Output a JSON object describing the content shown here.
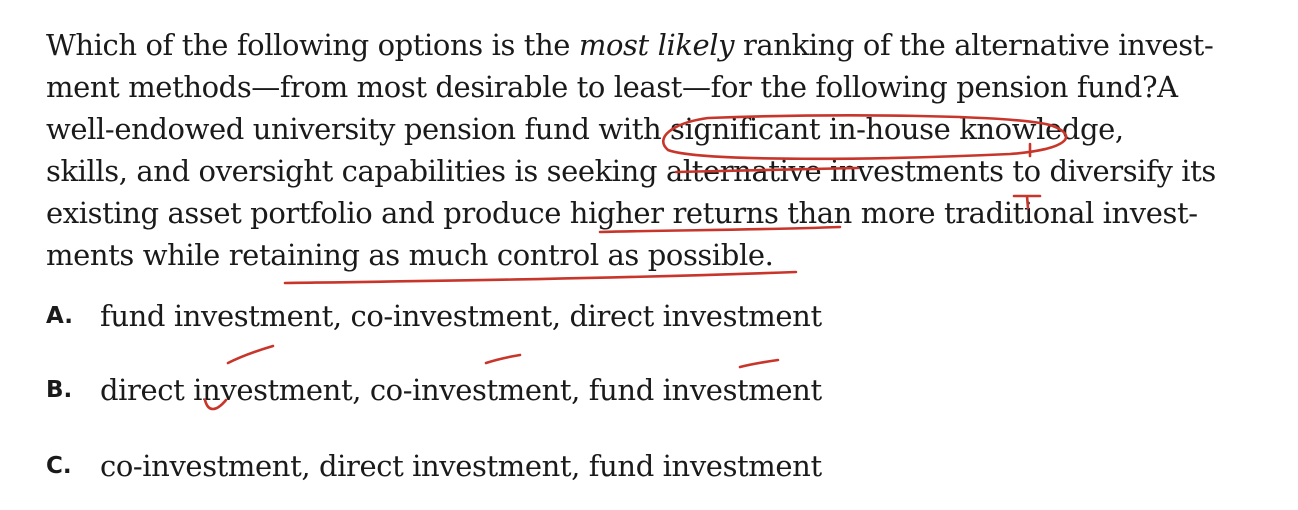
{
  "question": {
    "line1_before": "Which of the following options is the ",
    "line1_em": "most likely",
    "line1_after": " ranking of the alternative invest-",
    "line2": "ment methods—from most desirable to least—for the following pension fund?A",
    "line3": "well-endowed university pension fund with significant in-house knowledge,",
    "line4": "skills, and oversight capabilities is seeking alternative investments to diversify its",
    "line5": "existing asset portfolio and produce higher returns than more traditional invest-",
    "line6": "ments while retaining as much control as possible."
  },
  "options": [
    {
      "letter": "A.",
      "text": "fund investment, co-investment, direct investment"
    },
    {
      "letter": "B.",
      "text": "direct investment, co-investment, fund investment"
    },
    {
      "letter": "C.",
      "text": "co-investment, direct investment, fund investment"
    }
  ],
  "colors": {
    "annotation_ink": "#c8352b",
    "text": "#1a1a1a",
    "background": "#ffffff"
  }
}
